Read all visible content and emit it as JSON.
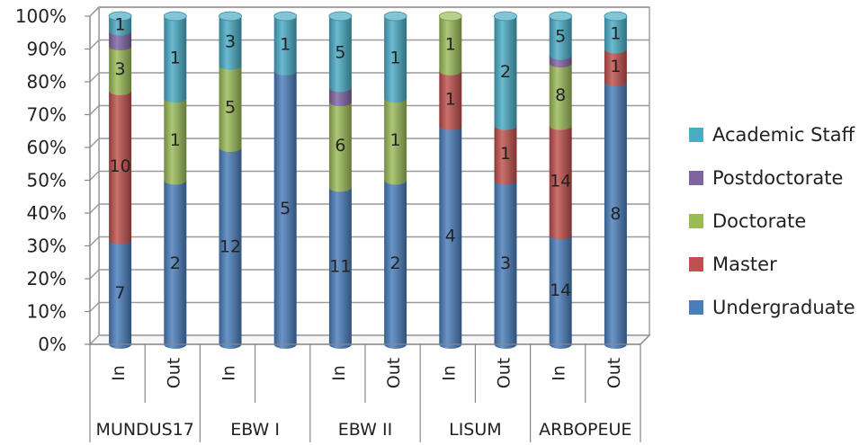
{
  "chart_data": {
    "type": "bar",
    "stacked": "percent",
    "ylim": [
      0,
      100
    ],
    "yticks": [
      "0%",
      "10%",
      "20%",
      "30%",
      "40%",
      "50%",
      "60%",
      "70%",
      "80%",
      "90%",
      "100%"
    ],
    "grid": true,
    "legend_position": "right",
    "groups": [
      "MUNDUS17",
      "EBW I",
      "EBW II",
      "LISUM",
      "ARBOPEUE"
    ],
    "categories": [
      {
        "group": "MUNDUS17",
        "label": "In"
      },
      {
        "group": "MUNDUS17",
        "label": "Out"
      },
      {
        "group": "EBW I",
        "label": "In"
      },
      {
        "group": "EBW I",
        "label": ""
      },
      {
        "group": "EBW II",
        "label": "In"
      },
      {
        "group": "EBW II",
        "label": "Out"
      },
      {
        "group": "LISUM",
        "label": "In"
      },
      {
        "group": "LISUM",
        "label": "Out"
      },
      {
        "group": "ARBOPEUE",
        "label": "In"
      },
      {
        "group": "ARBOPEUE",
        "label": "Out"
      }
    ],
    "series": [
      {
        "name": "Undergraduate",
        "color": "#4a7ebb",
        "values": [
          7,
          2,
          12,
          5,
          11,
          2,
          4,
          3,
          14,
          8
        ]
      },
      {
        "name": "Master",
        "color": "#c0504d",
        "values": [
          10,
          0,
          0,
          0,
          0,
          0,
          1,
          1,
          14,
          1
        ]
      },
      {
        "name": "Doctorate",
        "color": "#9bbb59",
        "values": [
          3,
          1,
          5,
          0,
          6,
          1,
          1,
          0,
          8,
          0
        ]
      },
      {
        "name": "Postdoctorate",
        "color": "#8064a2",
        "values": [
          1,
          0,
          0,
          0,
          1,
          0,
          0,
          0,
          1,
          0
        ]
      },
      {
        "name": "Academic Staff",
        "color": "#4bacc6",
        "values": [
          1,
          1,
          3,
          1,
          5,
          1,
          0,
          2,
          5,
          1
        ]
      }
    ],
    "data_labels": [
      [
        "7",
        "2",
        "12",
        "5",
        "11",
        "2",
        "4",
        "3",
        "14",
        "8"
      ],
      [
        "10",
        "",
        "",
        "",
        "",
        "",
        "1",
        "1",
        "14",
        "1"
      ],
      [
        "3",
        "1",
        "5",
        "",
        "6",
        "1",
        "1",
        "",
        "8",
        ""
      ],
      [
        "",
        "",
        "",
        "",
        "",
        "",
        "",
        "",
        "",
        ""
      ],
      [
        "1",
        "1",
        "3",
        "1",
        "5",
        "1",
        "",
        "2",
        "5",
        "1"
      ]
    ],
    "title": "",
    "xlabel": "",
    "ylabel": ""
  }
}
